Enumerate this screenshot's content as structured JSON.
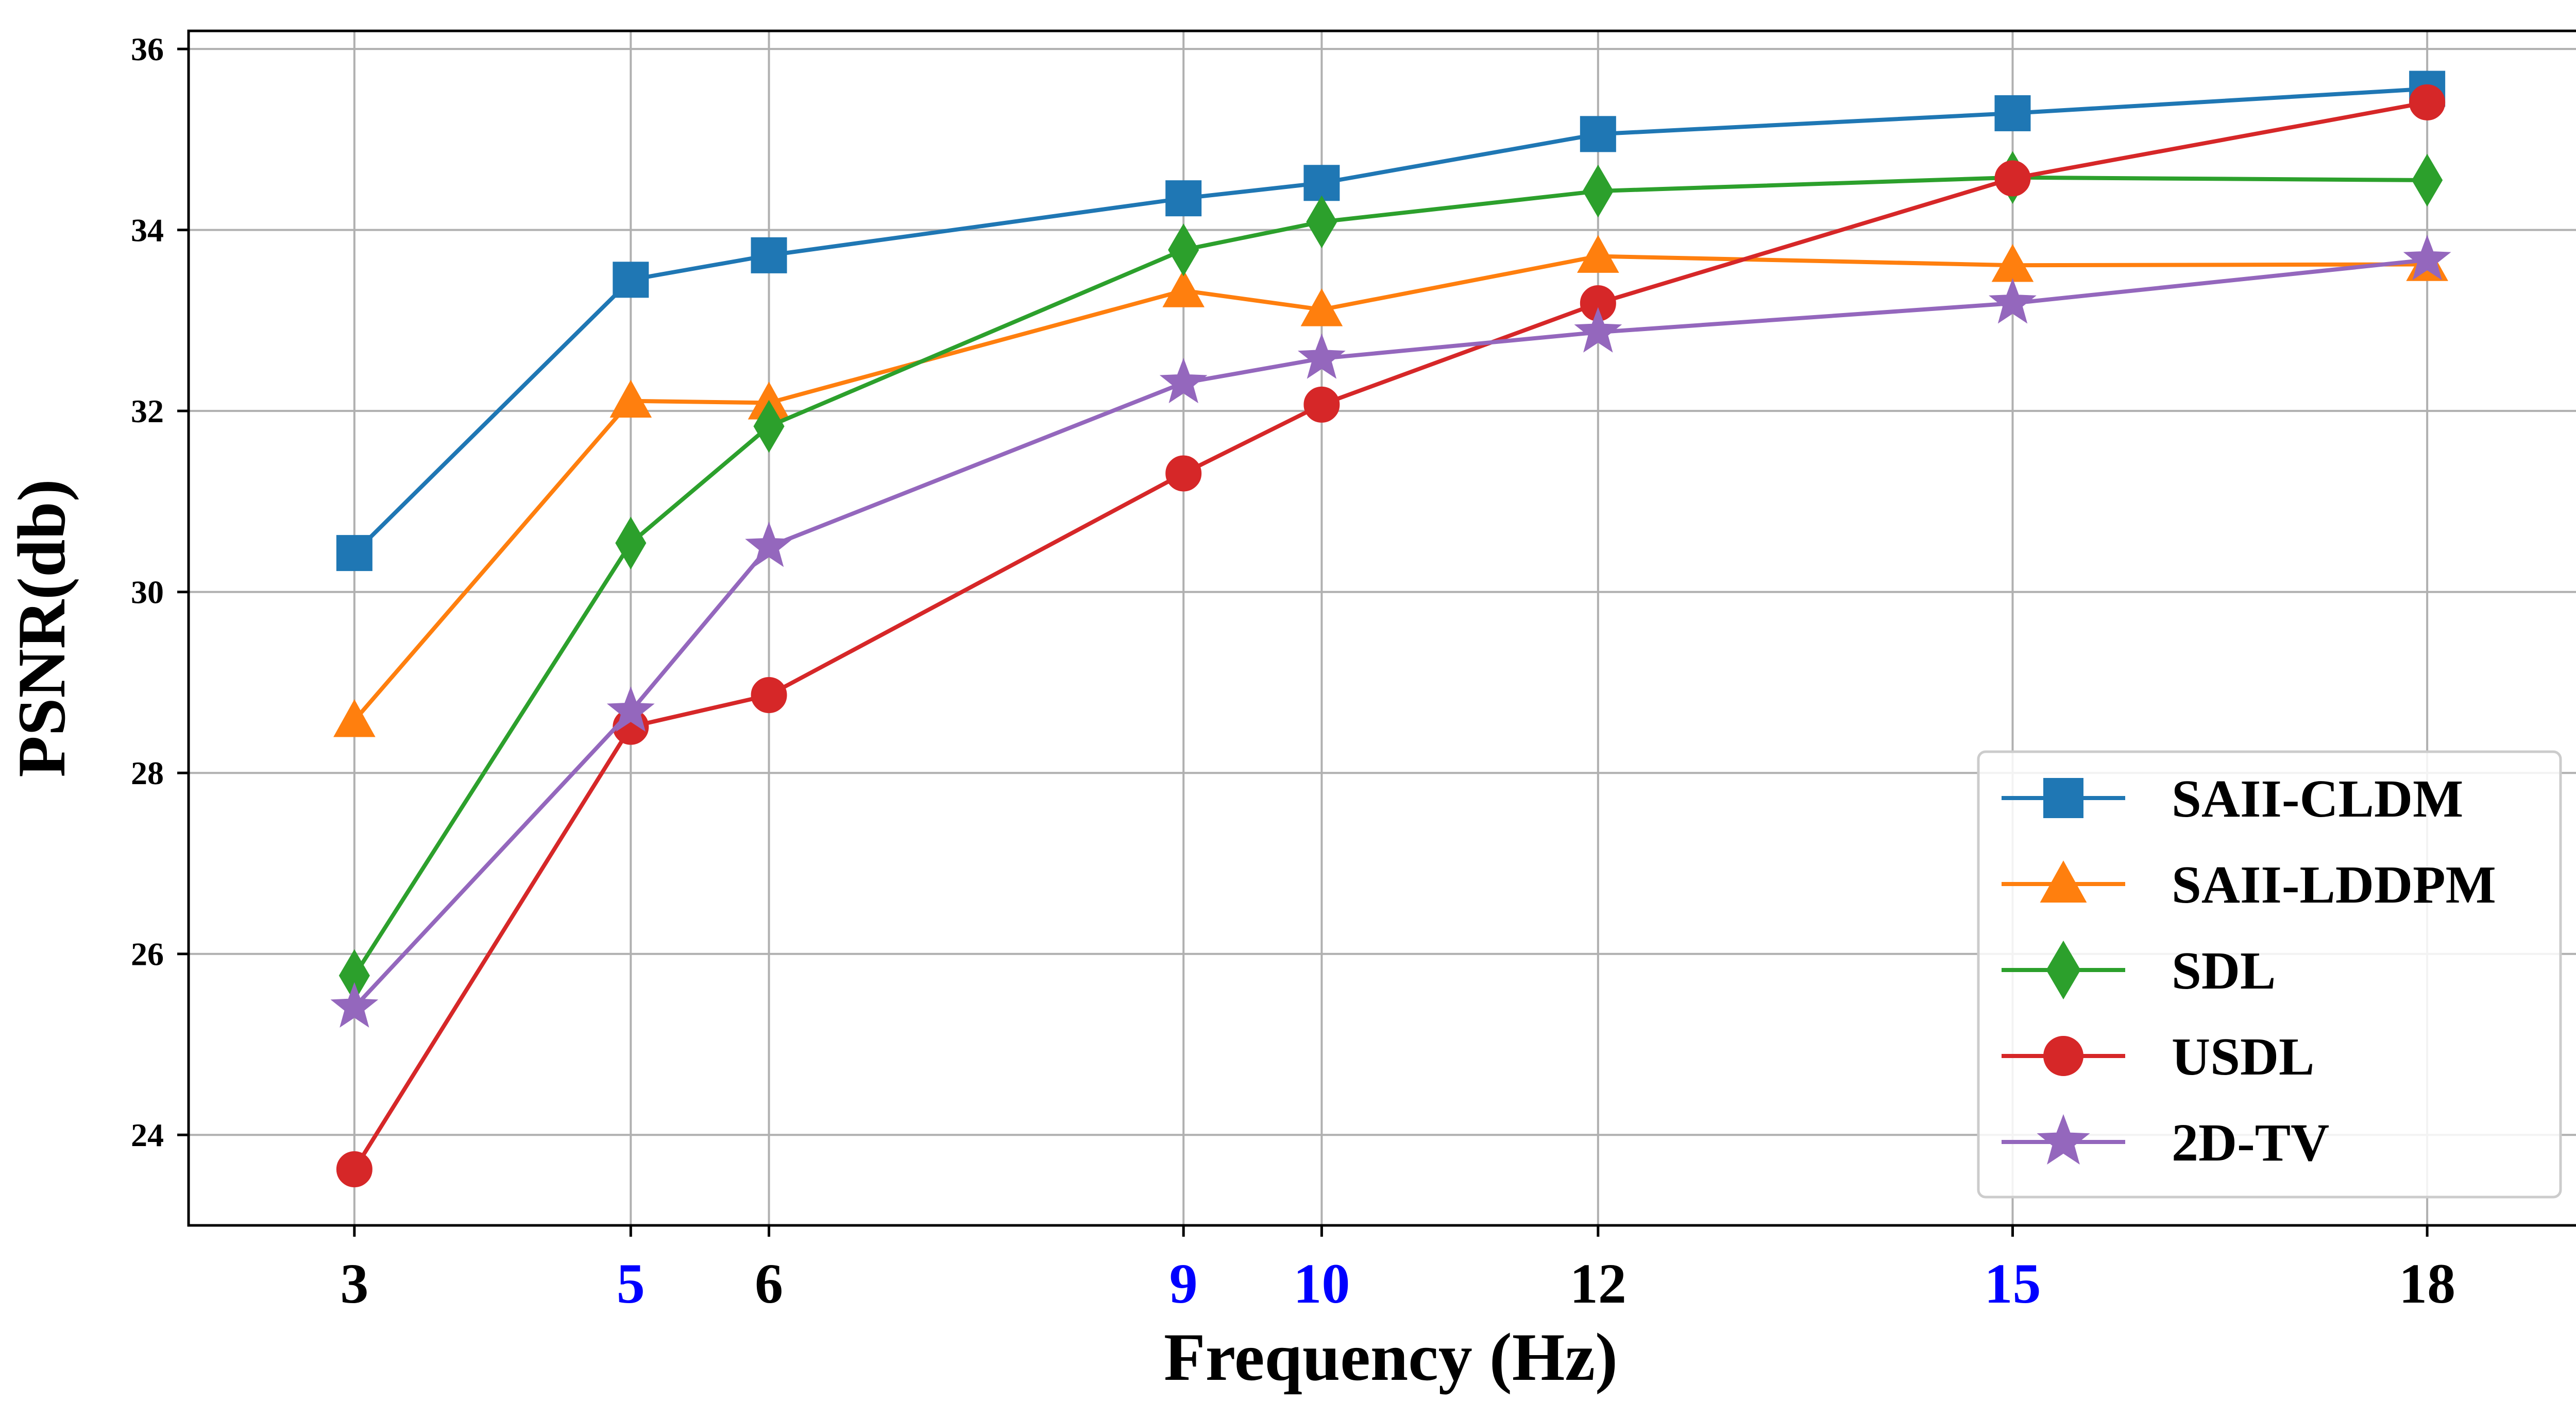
{
  "chart_data": {
    "type": "line",
    "title": "",
    "xlabel": "Frequency (Hz)",
    "ylabel": "PSNR(db)",
    "x": [
      3,
      5,
      6,
      9,
      10,
      12,
      15,
      18
    ],
    "x_tick_labels": [
      "3",
      "5",
      "6",
      "9",
      "10",
      "12",
      "15",
      "18"
    ],
    "highlighted_x_ticks": [
      "5",
      "9",
      "10",
      "15"
    ],
    "y_ticks": [
      24,
      26,
      28,
      30,
      32,
      34,
      36
    ],
    "y_tick_labels": [
      "24",
      "26",
      "28",
      "30",
      "32",
      "34",
      "36"
    ],
    "xlim": [
      1.8,
      19.2
    ],
    "ylim": [
      23.0,
      36.2
    ],
    "grid": true,
    "legend_position": "lower-right",
    "series": [
      {
        "name": "SAII-CLDM",
        "color": "#1f77b4",
        "marker": "square",
        "values": [
          30.43,
          33.45,
          33.72,
          34.35,
          34.52,
          35.06,
          35.29,
          35.56
        ]
      },
      {
        "name": "SAII-LDDPM",
        "color": "#ff7f0e",
        "marker": "triangle",
        "values": [
          28.58,
          32.11,
          32.09,
          33.33,
          33.12,
          33.71,
          33.61,
          33.62
        ]
      },
      {
        "name": "SDL",
        "color": "#2ca02c",
        "marker": "diamond",
        "values": [
          25.76,
          30.54,
          31.83,
          33.78,
          34.09,
          34.43,
          34.58,
          34.55
        ]
      },
      {
        "name": "USDL",
        "color": "#d62728",
        "marker": "circle",
        "values": [
          23.62,
          28.51,
          28.86,
          31.31,
          32.07,
          33.19,
          34.57,
          35.41
        ]
      },
      {
        "name": "2D-TV",
        "color": "#9467bd",
        "marker": "star",
        "values": [
          25.41,
          28.68,
          30.5,
          32.31,
          32.58,
          32.87,
          33.19,
          33.67
        ]
      }
    ]
  },
  "colors": {
    "axis": "#000000",
    "grid": "#b0b0b0",
    "tick_label_default": "#000000",
    "tick_label_highlight": "#0000ff",
    "legend_border": "#cccccc",
    "background": "#ffffff"
  }
}
